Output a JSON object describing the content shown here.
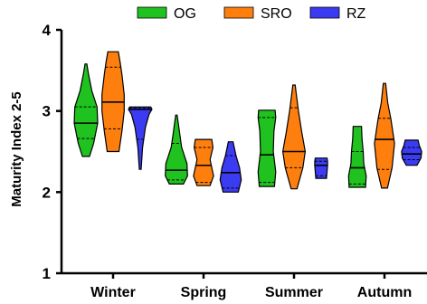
{
  "chart_data": {
    "type": "violin",
    "title": "",
    "xlabel": "",
    "ylabel": "Maturity Index 2-5",
    "ylim": [
      1,
      4
    ],
    "yticks": [
      "1",
      "2",
      "3",
      "4"
    ],
    "categories": [
      "Winter",
      "Spring",
      "Summer",
      "Autumn"
    ],
    "legend_position": "top",
    "grid": false,
    "series": [
      {
        "name": "OG",
        "color": "#1fc21f",
        "violins": [
          {
            "min": 2.44,
            "q1": 2.66,
            "median": 2.85,
            "q3": 3.05,
            "max": 3.58,
            "profile": [
              [
                2.44,
                0.3
              ],
              [
                2.6,
                0.65
              ],
              [
                2.85,
                1.0
              ],
              [
                3.05,
                0.95
              ],
              [
                3.25,
                0.5
              ],
              [
                3.45,
                0.22
              ],
              [
                3.58,
                0.08
              ]
            ]
          },
          {
            "min": 2.1,
            "q1": 2.15,
            "median": 2.27,
            "q3": 2.6,
            "max": 2.95,
            "profile": [
              [
                2.1,
                0.6
              ],
              [
                2.2,
                0.95
              ],
              [
                2.35,
                0.9
              ],
              [
                2.55,
                0.45
              ],
              [
                2.75,
                0.25
              ],
              [
                2.95,
                0.06
              ]
            ]
          },
          {
            "min": 2.07,
            "q1": 2.12,
            "median": 2.46,
            "q3": 2.92,
            "max": 3.01,
            "profile": [
              [
                2.07,
                0.65
              ],
              [
                2.25,
                0.75
              ],
              [
                2.5,
                0.55
              ],
              [
                2.75,
                0.6
              ],
              [
                2.92,
                0.75
              ],
              [
                3.01,
                0.7
              ]
            ]
          },
          {
            "min": 2.06,
            "q1": 2.1,
            "median": 2.3,
            "q3": 2.5,
            "max": 2.81,
            "profile": [
              [
                2.06,
                0.7
              ],
              [
                2.2,
                0.75
              ],
              [
                2.35,
                0.55
              ],
              [
                2.5,
                0.5
              ],
              [
                2.65,
                0.4
              ],
              [
                2.81,
                0.35
              ]
            ]
          }
        ]
      },
      {
        "name": "SRO",
        "color": "#ff7f0e",
        "violins": [
          {
            "min": 2.5,
            "q1": 2.78,
            "median": 3.11,
            "q3": 3.54,
            "max": 3.73,
            "profile": [
              [
                2.5,
                0.5
              ],
              [
                2.75,
                0.75
              ],
              [
                3.0,
                0.95
              ],
              [
                3.2,
                0.95
              ],
              [
                3.45,
                0.75
              ],
              [
                3.6,
                0.6
              ],
              [
                3.73,
                0.45
              ]
            ]
          },
          {
            "min": 2.08,
            "q1": 2.12,
            "median": 2.33,
            "q3": 2.55,
            "max": 2.65,
            "profile": [
              [
                2.08,
                0.55
              ],
              [
                2.2,
                0.85
              ],
              [
                2.4,
                0.55
              ],
              [
                2.55,
                0.8
              ],
              [
                2.65,
                0.7
              ]
            ]
          },
          {
            "min": 2.04,
            "q1": 2.3,
            "median": 2.5,
            "q3": 3.04,
            "max": 3.32,
            "profile": [
              [
                2.04,
                0.25
              ],
              [
                2.3,
                0.75
              ],
              [
                2.5,
                0.95
              ],
              [
                2.75,
                0.65
              ],
              [
                3.0,
                0.38
              ],
              [
                3.2,
                0.2
              ],
              [
                3.32,
                0.1
              ]
            ]
          },
          {
            "min": 2.05,
            "q1": 2.28,
            "median": 2.65,
            "q3": 2.91,
            "max": 3.34,
            "profile": [
              [
                2.05,
                0.25
              ],
              [
                2.3,
                0.65
              ],
              [
                2.6,
                0.85
              ],
              [
                2.9,
                0.55
              ],
              [
                3.1,
                0.28
              ],
              [
                3.34,
                0.1
              ]
            ]
          }
        ]
      },
      {
        "name": "RZ",
        "color": "#3b3bf2",
        "violins": [
          {
            "min": 2.28,
            "q1": 2.65,
            "median": 3.02,
            "q3": 3.04,
            "max": 3.05,
            "profile": [
              [
                2.28,
                0.08
              ],
              [
                2.55,
                0.2
              ],
              [
                2.8,
                0.45
              ],
              [
                2.96,
                0.75
              ],
              [
                3.02,
                1.0
              ],
              [
                3.05,
                0.9
              ]
            ]
          },
          {
            "min": 2.0,
            "q1": 2.05,
            "median": 2.24,
            "q3": 2.45,
            "max": 2.62,
            "profile": [
              [
                2.0,
                0.65
              ],
              [
                2.15,
                0.9
              ],
              [
                2.3,
                0.75
              ],
              [
                2.45,
                0.45
              ],
              [
                2.62,
                0.2
              ]
            ]
          },
          {
            "min": 2.17,
            "q1": 2.2,
            "median": 2.33,
            "q3": 2.38,
            "max": 2.42,
            "profile": [
              [
                2.17,
                0.45
              ],
              [
                2.25,
                0.5
              ],
              [
                2.33,
                0.55
              ],
              [
                2.38,
                0.55
              ],
              [
                2.42,
                0.5
              ]
            ]
          },
          {
            "min": 2.33,
            "q1": 2.4,
            "median": 2.47,
            "q3": 2.55,
            "max": 2.64,
            "profile": [
              [
                2.33,
                0.45
              ],
              [
                2.42,
                0.8
              ],
              [
                2.5,
                0.85
              ],
              [
                2.58,
                0.65
              ],
              [
                2.64,
                0.55
              ]
            ]
          }
        ]
      }
    ]
  }
}
